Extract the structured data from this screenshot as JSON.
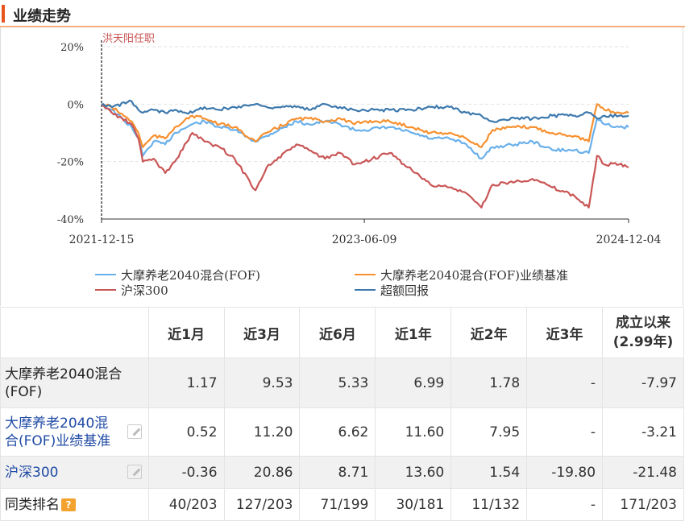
{
  "section_title": "业绩走势",
  "chart_data": {
    "type": "line",
    "y_unit": "%",
    "ylim": [
      -40,
      20
    ],
    "y_ticks": [
      "20%",
      "0%",
      "-20%",
      "-40%"
    ],
    "y_tick_values": [
      20,
      0,
      -20,
      -40
    ],
    "x_ticks": [
      "2021-12-15",
      "2023-06-09",
      "2024-12-04"
    ],
    "x_range": [
      "2021-12-15",
      "2024-12-04"
    ],
    "grid": "horizontal-dashed",
    "annotation": {
      "text": "洪天阳任职",
      "date": "2021-12-15"
    },
    "legend_position": "bottom",
    "series": [
      {
        "name": "大摩养老2040混合(FOF)",
        "color": "#6ab0ea",
        "points": [
          [
            "2021-12-15",
            0
          ],
          [
            "2022-01-05",
            -2
          ],
          [
            "2022-02-15",
            -8
          ],
          [
            "2022-03-01",
            -12
          ],
          [
            "2022-03-10",
            -18
          ],
          [
            "2022-04-01",
            -13
          ],
          [
            "2022-04-25",
            -14
          ],
          [
            "2022-05-15",
            -10
          ],
          [
            "2022-06-20",
            -7
          ],
          [
            "2022-07-15",
            -6
          ],
          [
            "2022-08-15",
            -8
          ],
          [
            "2022-09-15",
            -9
          ],
          [
            "2022-10-28",
            -13
          ],
          [
            "2022-11-20",
            -11
          ],
          [
            "2023-01-20",
            -6
          ],
          [
            "2023-02-15",
            -7
          ],
          [
            "2023-03-20",
            -6
          ],
          [
            "2023-04-20",
            -7
          ],
          [
            "2023-05-20",
            -9
          ],
          [
            "2023-06-09",
            -9
          ],
          [
            "2023-07-31",
            -8
          ],
          [
            "2023-09-15",
            -10
          ],
          [
            "2023-10-23",
            -12
          ],
          [
            "2023-12-01",
            -12
          ],
          [
            "2024-01-05",
            -14
          ],
          [
            "2024-02-05",
            -19
          ],
          [
            "2024-02-28",
            -15
          ],
          [
            "2024-04-15",
            -14
          ],
          [
            "2024-05-20",
            -13
          ],
          [
            "2024-06-30",
            -16
          ],
          [
            "2024-08-15",
            -16
          ],
          [
            "2024-09-13",
            -17
          ],
          [
            "2024-09-30",
            -5
          ],
          [
            "2024-10-15",
            -7
          ],
          [
            "2024-11-15",
            -8
          ],
          [
            "2024-12-04",
            -8
          ]
        ]
      },
      {
        "name": "大摩养老2040混合(FOF)业绩基准",
        "color": "#f7902f",
        "points": [
          [
            "2021-12-15",
            0
          ],
          [
            "2022-01-05",
            -1
          ],
          [
            "2022-02-15",
            -6
          ],
          [
            "2022-03-01",
            -10
          ],
          [
            "2022-03-10",
            -15
          ],
          [
            "2022-04-01",
            -11
          ],
          [
            "2022-04-25",
            -12
          ],
          [
            "2022-05-15",
            -8
          ],
          [
            "2022-06-20",
            -4
          ],
          [
            "2022-07-15",
            -5
          ],
          [
            "2022-08-15",
            -7
          ],
          [
            "2022-09-15",
            -8
          ],
          [
            "2022-10-28",
            -13
          ],
          [
            "2022-11-20",
            -10
          ],
          [
            "2023-01-20",
            -5
          ],
          [
            "2023-02-15",
            -5
          ],
          [
            "2023-03-20",
            -6
          ],
          [
            "2023-04-20",
            -5
          ],
          [
            "2023-05-20",
            -7
          ],
          [
            "2023-06-09",
            -6
          ],
          [
            "2023-07-31",
            -6
          ],
          [
            "2023-09-15",
            -8
          ],
          [
            "2023-10-23",
            -10
          ],
          [
            "2023-12-01",
            -10
          ],
          [
            "2024-01-05",
            -12
          ],
          [
            "2024-02-05",
            -15
          ],
          [
            "2024-02-28",
            -9
          ],
          [
            "2024-04-15",
            -8
          ],
          [
            "2024-05-20",
            -8
          ],
          [
            "2024-06-30",
            -10
          ],
          [
            "2024-08-15",
            -11
          ],
          [
            "2024-09-13",
            -13
          ],
          [
            "2024-09-30",
            0
          ],
          [
            "2024-10-15",
            -2
          ],
          [
            "2024-11-15",
            -3
          ],
          [
            "2024-12-04",
            -3
          ]
        ]
      },
      {
        "name": "沪深300",
        "color": "#c95656",
        "points": [
          [
            "2021-12-15",
            0
          ],
          [
            "2022-01-05",
            -3
          ],
          [
            "2022-02-15",
            -7
          ],
          [
            "2022-03-01",
            -12
          ],
          [
            "2022-03-10",
            -20
          ],
          [
            "2022-04-01",
            -19
          ],
          [
            "2022-04-25",
            -24
          ],
          [
            "2022-05-15",
            -20
          ],
          [
            "2022-06-20",
            -10
          ],
          [
            "2022-07-15",
            -13
          ],
          [
            "2022-08-15",
            -15
          ],
          [
            "2022-09-15",
            -19
          ],
          [
            "2022-10-28",
            -30
          ],
          [
            "2022-11-20",
            -22
          ],
          [
            "2023-01-20",
            -14
          ],
          [
            "2023-02-15",
            -16
          ],
          [
            "2023-03-20",
            -19
          ],
          [
            "2023-04-20",
            -17
          ],
          [
            "2023-05-20",
            -21
          ],
          [
            "2023-06-09",
            -20
          ],
          [
            "2023-07-31",
            -17
          ],
          [
            "2023-09-15",
            -23
          ],
          [
            "2023-10-23",
            -28
          ],
          [
            "2023-12-01",
            -29
          ],
          [
            "2024-01-05",
            -31
          ],
          [
            "2024-02-05",
            -36
          ],
          [
            "2024-02-28",
            -28
          ],
          [
            "2024-04-15",
            -27
          ],
          [
            "2024-05-20",
            -26
          ],
          [
            "2024-06-30",
            -29
          ],
          [
            "2024-08-15",
            -32
          ],
          [
            "2024-09-13",
            -36
          ],
          [
            "2024-09-30",
            -18
          ],
          [
            "2024-10-15",
            -21
          ],
          [
            "2024-11-15",
            -21
          ],
          [
            "2024-12-04",
            -22
          ]
        ]
      },
      {
        "name": "超额回报",
        "color": "#3d79ad",
        "points": [
          [
            "2021-12-15",
            0
          ],
          [
            "2022-01-05",
            -1
          ],
          [
            "2022-02-15",
            1
          ],
          [
            "2022-03-01",
            -2
          ],
          [
            "2022-03-10",
            -3
          ],
          [
            "2022-04-01",
            -2
          ],
          [
            "2022-04-25",
            -3
          ],
          [
            "2022-05-15",
            -2
          ],
          [
            "2022-06-20",
            -3
          ],
          [
            "2022-07-15",
            -1
          ],
          [
            "2022-08-15",
            -2
          ],
          [
            "2022-09-15",
            -1
          ],
          [
            "2022-10-28",
            0
          ],
          [
            "2022-11-20",
            -1
          ],
          [
            "2023-01-20",
            -1
          ],
          [
            "2023-02-15",
            -2
          ],
          [
            "2023-03-20",
            0
          ],
          [
            "2023-04-20",
            -1
          ],
          [
            "2023-05-20",
            -2
          ],
          [
            "2023-06-09",
            -2
          ],
          [
            "2023-07-31",
            -2
          ],
          [
            "2023-09-15",
            -2
          ],
          [
            "2023-10-23",
            -1
          ],
          [
            "2023-12-01",
            -1
          ],
          [
            "2024-01-05",
            -3
          ],
          [
            "2024-02-05",
            -4
          ],
          [
            "2024-02-28",
            -6
          ],
          [
            "2024-04-15",
            -5
          ],
          [
            "2024-05-20",
            -5
          ],
          [
            "2024-06-30",
            -4
          ],
          [
            "2024-08-15",
            -4
          ],
          [
            "2024-09-13",
            -3
          ],
          [
            "2024-09-30",
            -5
          ],
          [
            "2024-10-15",
            -4
          ],
          [
            "2024-11-15",
            -4
          ],
          [
            "2024-12-04",
            -4
          ]
        ]
      }
    ]
  },
  "table": {
    "headers": [
      "近1月",
      "近3月",
      "近6月",
      "近1年",
      "近2年",
      "近3年"
    ],
    "header_last_line1": "成立以来",
    "header_last_line2": "(2.99年)",
    "rows": [
      {
        "name": "大摩养老2040混合(FOF)",
        "values": [
          "1.17",
          "9.53",
          "5.33",
          "6.99",
          "1.78",
          "-",
          "-7.97"
        ]
      },
      {
        "name": "大摩养老2040混合(FOF)业绩基准",
        "values": [
          "0.52",
          "11.20",
          "6.62",
          "11.60",
          "7.95",
          "-",
          "-3.21"
        ]
      },
      {
        "name": "沪深300",
        "values": [
          "-0.36",
          "20.86",
          "8.71",
          "13.60",
          "1.54",
          "-19.80",
          "-21.48"
        ]
      },
      {
        "name": "同类排名",
        "values": [
          "40/203",
          "127/203",
          "71/199",
          "30/181",
          "11/132",
          "-",
          "171/203"
        ]
      }
    ],
    "help_glyph": "?"
  }
}
